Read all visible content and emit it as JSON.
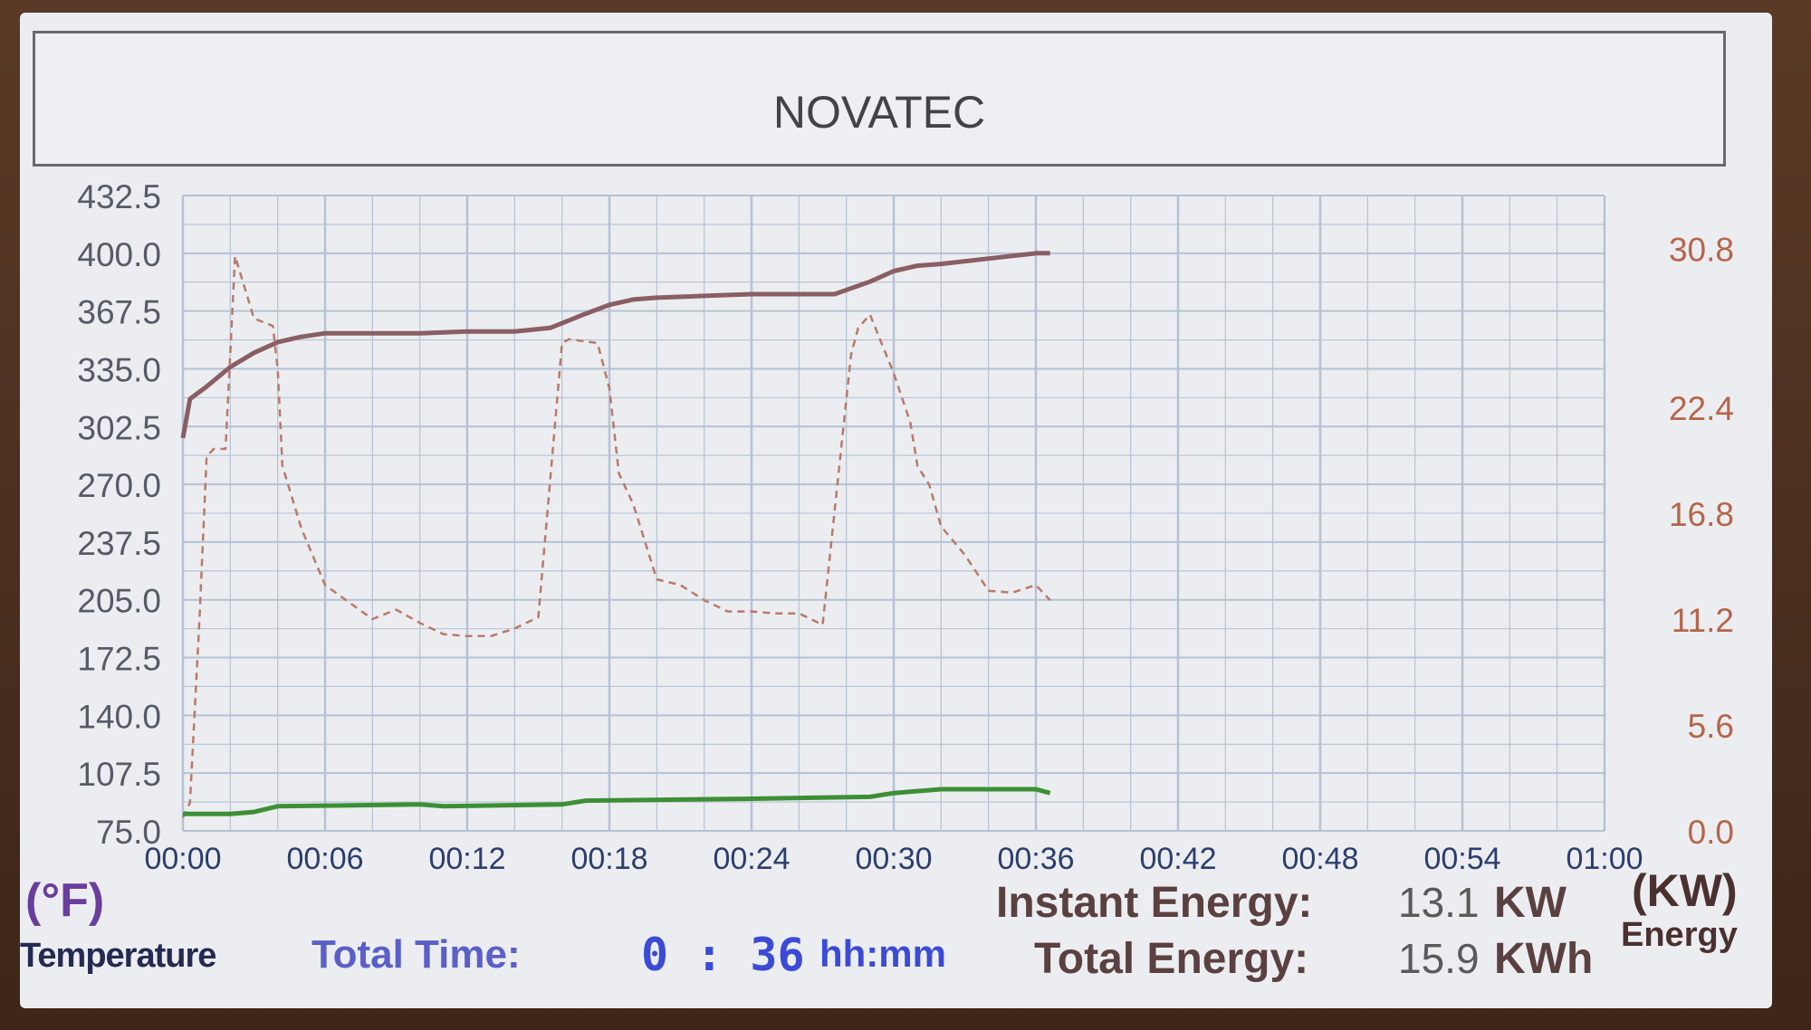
{
  "header": {
    "title": "NOVATEC"
  },
  "colors": {
    "temp_line": "#8a5e65",
    "power_dashed": "#b87a6a",
    "energy_line": "#3d8f35",
    "grid": "#b4c2d4",
    "left_axis_text": "#555b66",
    "right_axis_text": "#b5654a",
    "x_axis_text": "#2c3e6e"
  },
  "footer": {
    "left_unit": "(°F)",
    "left_word": "Temperature",
    "total_time_label": "Total Time:",
    "total_time_value": "0 : 36",
    "total_time_unit": "hh:mm",
    "instant_label": "Instant Energy:",
    "instant_value": "13.1",
    "instant_unit": "KW",
    "total_label": "Total Energy:",
    "total_value": "15.9",
    "total_unit": "KWh",
    "right_unit": "(KW)",
    "right_word": "Energy"
  },
  "chart_data": {
    "type": "line",
    "grid": true,
    "xlim": [
      0,
      60
    ],
    "x_ticks": [
      "00:00",
      "00:06",
      "00:12",
      "00:18",
      "00:24",
      "00:30",
      "00:36",
      "00:42",
      "00:48",
      "00:54",
      "01:00"
    ],
    "ylim_left": [
      75,
      432.5
    ],
    "y_ticks_left": [
      "75.0",
      "107.5",
      "140.0",
      "172.5",
      "205.0",
      "237.5",
      "270.0",
      "302.5",
      "335.0",
      "367.5",
      "400.0",
      "432.5"
    ],
    "ylim_right": [
      0,
      33.6
    ],
    "y_ticks_right": [
      "0.0",
      "5.6",
      "11.2",
      "16.8",
      "22.4",
      "30.8"
    ],
    "series": [
      {
        "axis": "left",
        "style": "solid",
        "x": [
          0,
          0.3,
          1,
          2,
          3,
          4,
          5,
          6,
          8,
          10,
          12,
          14,
          15.5,
          17,
          18,
          19,
          20,
          22,
          24,
          26,
          27.5,
          29,
          30,
          31,
          32,
          34,
          36,
          36.6
        ],
        "y": [
          296,
          318,
          325,
          336,
          344,
          350,
          353,
          355,
          355,
          355,
          356,
          356,
          358,
          366,
          371,
          374,
          375,
          376,
          377,
          377,
          377,
          384,
          390,
          393,
          394,
          397,
          400,
          400
        ]
      },
      {
        "axis": "right",
        "style": "dashed",
        "x": [
          0,
          0.3,
          0.7,
          1,
          1.3,
          1.8,
          2.2,
          3,
          3.8,
          4,
          4.2,
          5,
          6,
          7,
          8,
          9,
          10,
          11,
          12,
          13,
          14,
          15,
          16,
          16.3,
          17.5,
          18,
          18.4,
          19,
          20,
          21,
          22,
          23,
          24,
          25,
          26,
          27,
          28.2,
          28.5,
          29,
          30,
          30.7,
          31,
          31.5,
          32,
          33,
          34,
          35,
          36,
          36.6
        ],
        "y": [
          0.7,
          1.5,
          11.2,
          19.8,
          20.2,
          20.2,
          30.4,
          27.1,
          26.7,
          24.4,
          19.3,
          16.0,
          13.0,
          12.1,
          11.2,
          11.7,
          11.0,
          10.4,
          10.3,
          10.3,
          10.7,
          11.3,
          25.8,
          26.0,
          25.8,
          23.4,
          18.9,
          17.3,
          13.3,
          13.0,
          12.2,
          11.6,
          11.6,
          11.5,
          11.5,
          10.9,
          25.2,
          26.6,
          27.3,
          24.2,
          21.6,
          19.3,
          18.3,
          16.1,
          14.6,
          12.7,
          12.6,
          13.0,
          12.2
        ]
      },
      {
        "axis": "right",
        "style": "solid",
        "x": [
          0,
          2,
          3,
          4,
          10,
          11,
          16,
          17,
          24,
          29,
          30,
          32,
          36,
          36.6
        ],
        "y": [
          0.9,
          0.9,
          1.0,
          1.3,
          1.4,
          1.3,
          1.4,
          1.6,
          1.7,
          1.8,
          2.0,
          2.2,
          2.2,
          2.0
        ]
      }
    ]
  }
}
